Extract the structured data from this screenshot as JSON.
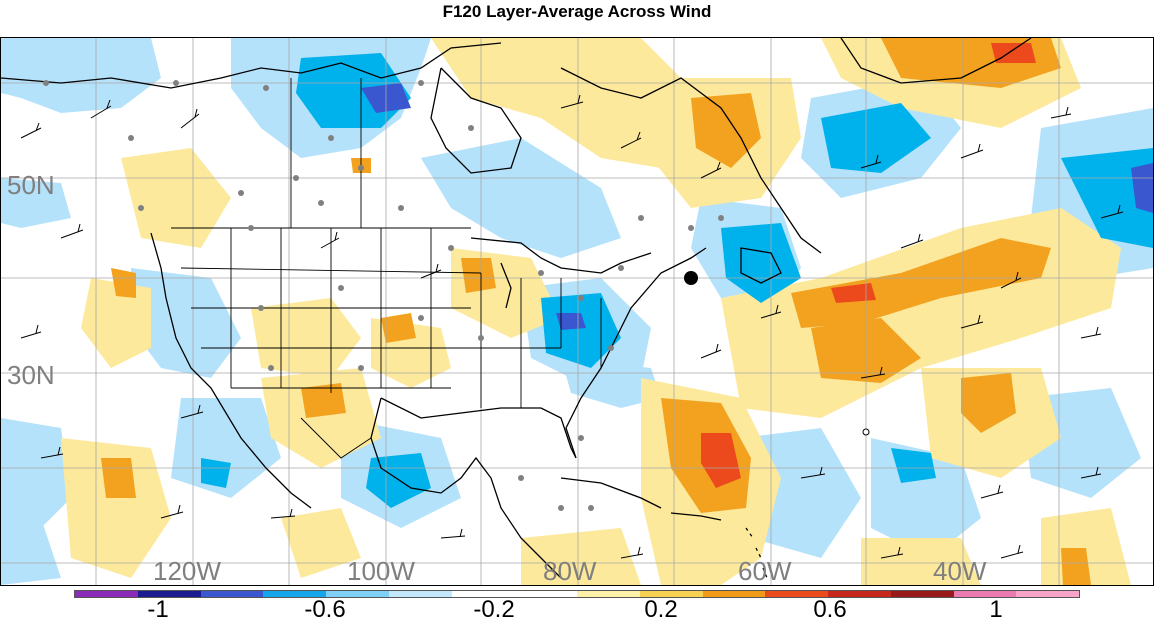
{
  "title": "F120 Layer-Average Across Wind",
  "map": {
    "lat_labels": [
      "50N",
      "30N"
    ],
    "lon_labels": [
      "120W",
      "100W",
      "80W",
      "60W",
      "40W"
    ],
    "shading": {
      "neg_strong": "#1f4fc8",
      "neg_mid": "#00b2ec",
      "neg_weak": "#b5e2fb",
      "pos_weak": "#fde99b",
      "pos_mid": "#f2a21f",
      "pos_strong": "#ec4a1c",
      "coast": "#000000",
      "grid": "#a8a8a8",
      "station": "#808080"
    }
  },
  "colorbar": {
    "colors": [
      "#8a2cb8",
      "#1b1c8f",
      "#3b57d0",
      "#14a5ea",
      "#7fd0f6",
      "#c4e8fb",
      "#ffffff",
      "#ffffff",
      "#fdf0a8",
      "#f6d152",
      "#f09a18",
      "#ea4a1c",
      "#c7281c",
      "#991a1a",
      "#ea7ab0",
      "#f8a4c8"
    ],
    "labels": [
      "-1",
      "-0.6",
      "-0.2",
      "0.2",
      "0.6",
      "1"
    ]
  }
}
